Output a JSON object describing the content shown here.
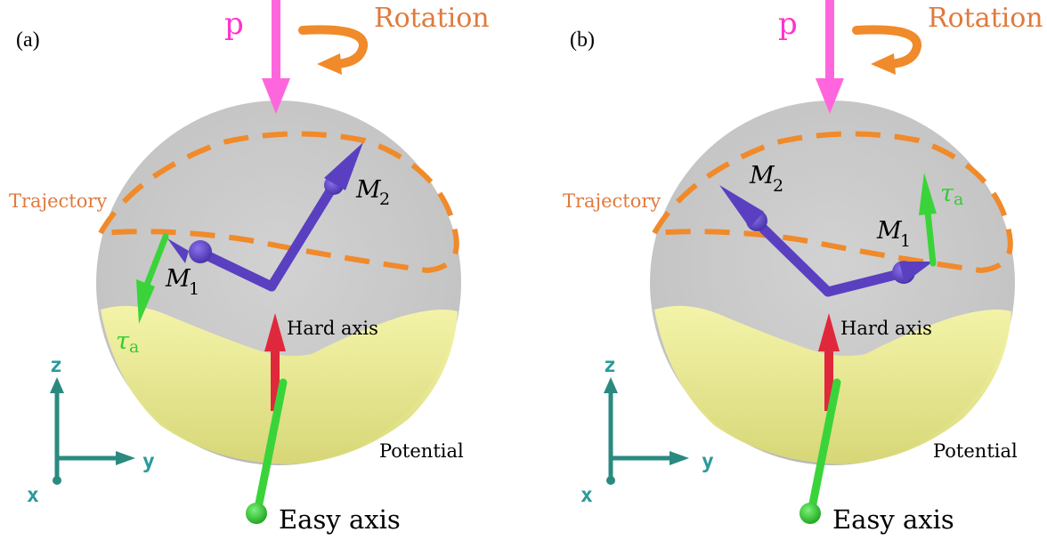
{
  "colors": {
    "sphere": "#c9c9c9",
    "potential": "#f0f08c",
    "trajectory": "#f08a2a",
    "magnetization": "#6a4ec8",
    "torque": "#3ad43a",
    "hard_axis": "#e0283c",
    "easy_axis": "#3ad43a",
    "p_arrow": "#ff66dd",
    "coord_axes": "#2a8a80"
  },
  "panels": [
    {
      "label": "(a)",
      "p_label": "p",
      "rotation_label": "Rotation",
      "trajectory_label": "Trajectory",
      "m1": "M",
      "m1_sub": "1",
      "m2": "M",
      "m2_sub": "2",
      "tau": "τ",
      "tau_sub": "a",
      "hard_axis_label": "Hard axis",
      "potential_label": "Potential",
      "easy_axis_label": "Easy axis",
      "axis_x": "x",
      "axis_y": "y",
      "axis_z": "z"
    },
    {
      "label": "(b)",
      "p_label": "p",
      "rotation_label": "Rotation",
      "trajectory_label": "Trajectory",
      "m1": "M",
      "m1_sub": "1",
      "m2": "M",
      "m2_sub": "2",
      "tau": "τ",
      "tau_sub": "a",
      "hard_axis_label": "Hard axis",
      "potential_label": "Potential",
      "easy_axis_label": "Easy axis",
      "axis_x": "x",
      "axis_y": "y",
      "axis_z": "z"
    }
  ]
}
